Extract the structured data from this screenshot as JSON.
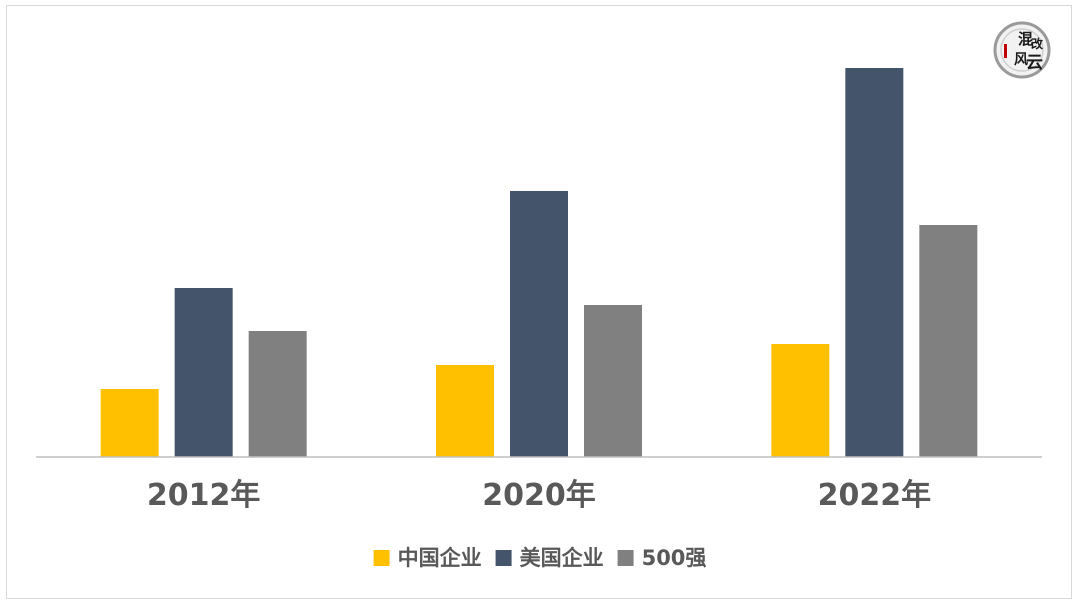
{
  "chart_data": {
    "type": "bar",
    "categories": [
      "2012年",
      "2020年",
      "2022年"
    ],
    "series": [
      {
        "name": "中国企业",
        "color": "#ffc000",
        "values": [
          68,
          92,
          113
        ]
      },
      {
        "name": "美国企业",
        "color": "#44546a",
        "values": [
          169,
          266,
          389
        ]
      },
      {
        "name": "500强",
        "color": "#808080",
        "values": [
          126,
          152,
          232
        ]
      }
    ],
    "ylim": [
      0,
      410
    ],
    "legend_position": "bottom",
    "grid": false
  },
  "logo": {
    "chars": [
      "混",
      "改",
      "风",
      "云"
    ]
  }
}
